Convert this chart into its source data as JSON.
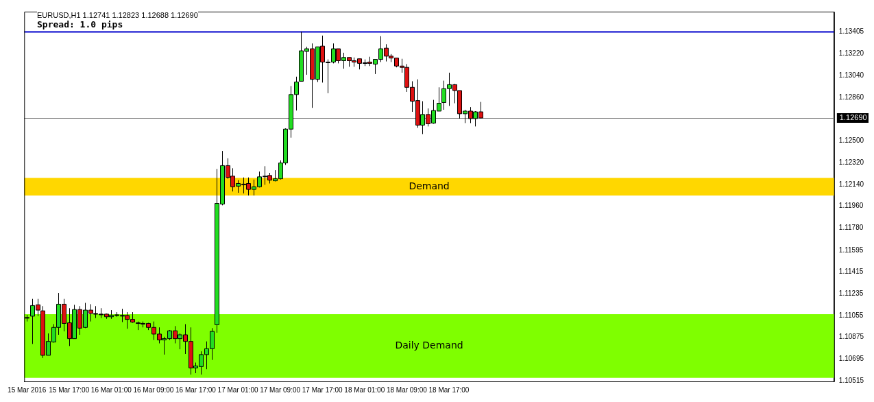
{
  "chart_data": {
    "type": "candlestick",
    "title": "EURUSD,H1  1.12741 1.12823 1.12688 1.12690",
    "subtitle": "Spread: 1.0 pips",
    "x": [
      "2016-03-15T09:00",
      "2016-03-15T10:00",
      "2016-03-15T11:00",
      "2016-03-15T12:00",
      "2016-03-15T13:00",
      "2016-03-15T14:00",
      "2016-03-15T15:00",
      "2016-03-15T16:00",
      "2016-03-15T17:00",
      "2016-03-15T18:00",
      "2016-03-15T19:00",
      "2016-03-15T20:00",
      "2016-03-15T21:00",
      "2016-03-15T22:00",
      "2016-03-15T23:00",
      "2016-03-16T00:00",
      "2016-03-16T01:00",
      "2016-03-16T02:00",
      "2016-03-16T03:00",
      "2016-03-16T04:00",
      "2016-03-16T05:00",
      "2016-03-16T06:00",
      "2016-03-16T07:00",
      "2016-03-16T08:00",
      "2016-03-16T09:00",
      "2016-03-16T10:00",
      "2016-03-16T11:00",
      "2016-03-16T12:00",
      "2016-03-16T13:00",
      "2016-03-16T14:00",
      "2016-03-16T15:00",
      "2016-03-16T16:00",
      "2016-03-16T17:00",
      "2016-03-16T18:00",
      "2016-03-16T19:00",
      "2016-03-16T20:00",
      "2016-03-16T21:00",
      "2016-03-16T22:00",
      "2016-03-16T23:00",
      "2016-03-17T00:00",
      "2016-03-17T01:00",
      "2016-03-17T02:00",
      "2016-03-17T03:00",
      "2016-03-17T04:00",
      "2016-03-17T05:00",
      "2016-03-17T06:00",
      "2016-03-17T07:00",
      "2016-03-17T08:00",
      "2016-03-17T09:00",
      "2016-03-17T10:00",
      "2016-03-17T11:00",
      "2016-03-17T12:00",
      "2016-03-17T13:00",
      "2016-03-17T14:00",
      "2016-03-17T15:00",
      "2016-03-17T16:00",
      "2016-03-17T17:00",
      "2016-03-17T18:00",
      "2016-03-17T19:00",
      "2016-03-17T20:00",
      "2016-03-17T21:00",
      "2016-03-17T22:00",
      "2016-03-17T23:00",
      "2016-03-18T00:00",
      "2016-03-18T01:00",
      "2016-03-18T02:00",
      "2016-03-18T03:00",
      "2016-03-18T04:00",
      "2016-03-18T05:00",
      "2016-03-18T06:00",
      "2016-03-18T07:00",
      "2016-03-18T08:00",
      "2016-03-18T09:00",
      "2016-03-18T10:00",
      "2016-03-18T11:00",
      "2016-03-18T12:00",
      "2016-03-18T13:00",
      "2016-03-18T14:00",
      "2016-03-18T15:00",
      "2016-03-18T16:00",
      "2016-03-18T17:00",
      "2016-03-18T18:00",
      "2016-03-18T19:00",
      "2016-03-18T20:00",
      "2016-03-18T21:00",
      "2016-03-18T22:00",
      "2016-03-18T23:00"
    ],
    "ohlc": [
      [
        1.11039,
        1.11061,
        1.11006,
        1.11039
      ],
      [
        1.1105,
        1.11193,
        1.1082,
        1.11138
      ],
      [
        1.11144,
        1.11193,
        1.1105,
        1.111
      ],
      [
        1.11094,
        1.11133,
        1.10704,
        1.10726
      ],
      [
        1.10726,
        1.10907,
        1.10726,
        1.10841
      ],
      [
        1.10836,
        1.10984,
        1.10831,
        1.10957
      ],
      [
        1.10957,
        1.11242,
        1.10896,
        1.11149
      ],
      [
        1.11149,
        1.11193,
        1.10924,
        1.1099
      ],
      [
        1.10995,
        1.11116,
        1.10803,
        1.10864
      ],
      [
        1.10864,
        1.11144,
        1.10864,
        1.11105
      ],
      [
        1.11105,
        1.11133,
        1.10896,
        1.10951
      ],
      [
        1.10957,
        1.1116,
        1.10951,
        1.111
      ],
      [
        1.111,
        1.11149,
        1.11006,
        1.11072
      ],
      [
        1.11072,
        1.11133,
        1.11034,
        1.11072
      ],
      [
        1.11067,
        1.11116,
        1.11034,
        1.11067
      ],
      [
        1.11067,
        1.11072,
        1.11028,
        1.11045
      ],
      [
        1.11045,
        1.111,
        1.11028,
        1.11056
      ],
      [
        1.11061,
        1.11083,
        1.11045,
        1.11061
      ],
      [
        1.11056,
        1.11111,
        1.11001,
        1.11056
      ],
      [
        1.11056,
        1.11083,
        1.10946,
        1.11023
      ],
      [
        1.11023,
        1.11083,
        1.10995,
        1.11001
      ],
      [
        1.10995,
        1.11006,
        1.10935,
        1.10995
      ],
      [
        1.1099,
        1.11006,
        1.10957,
        1.1099
      ],
      [
        1.1099,
        1.10995,
        1.10935,
        1.10957
      ],
      [
        1.10957,
        1.11006,
        1.10853,
        1.10902
      ],
      [
        1.10902,
        1.10957,
        1.10825,
        1.10853
      ],
      [
        1.10853,
        1.1088,
        1.10732,
        1.10864
      ],
      [
        1.10864,
        1.10935,
        1.10853,
        1.10929
      ],
      [
        1.10929,
        1.10968,
        1.10825,
        1.10864
      ],
      [
        1.10864,
        1.10907,
        1.10776,
        1.10896
      ],
      [
        1.10896,
        1.10984,
        1.10737,
        1.10841
      ],
      [
        1.10841,
        1.10957,
        1.10567,
        1.10622
      ],
      [
        1.10622,
        1.10666,
        1.10578,
        1.10638
      ],
      [
        1.10633,
        1.10759,
        1.10567,
        1.10732
      ],
      [
        1.10732,
        1.10841,
        1.10611,
        1.10781
      ],
      [
        1.10781,
        1.10951,
        1.10688,
        1.10924
      ],
      [
        1.10979,
        1.12269,
        1.10913,
        1.11983
      ],
      [
        1.11978,
        1.12417,
        1.11967,
        1.12296
      ],
      [
        1.12296,
        1.12357,
        1.12187,
        1.12198
      ],
      [
        1.12209,
        1.12274,
        1.12082,
        1.12121
      ],
      [
        1.12126,
        1.12176,
        1.12071,
        1.12148
      ],
      [
        1.12143,
        1.12198,
        1.12066,
        1.12143
      ],
      [
        1.12148,
        1.12198,
        1.12049,
        1.12099
      ],
      [
        1.12099,
        1.12181,
        1.12049,
        1.12121
      ],
      [
        1.12121,
        1.12247,
        1.12115,
        1.12203
      ],
      [
        1.12209,
        1.12291,
        1.12137,
        1.12209
      ],
      [
        1.12214,
        1.12236,
        1.12148,
        1.12176
      ],
      [
        1.1217,
        1.12258,
        1.12165,
        1.12187
      ],
      [
        1.12187,
        1.1234,
        1.12181,
        1.12318
      ],
      [
        1.12318,
        1.12604,
        1.12302,
        1.12598
      ],
      [
        1.12598,
        1.12955,
        1.12527,
        1.12884
      ],
      [
        1.12884,
        1.13032,
        1.12752,
        1.12988
      ],
      [
        1.12994,
        1.13405,
        1.12994,
        1.13246
      ],
      [
        1.13241,
        1.13279,
        1.13048,
        1.13263
      ],
      [
        1.13263,
        1.13307,
        1.12774,
        1.1301
      ],
      [
        1.1301,
        1.13279,
        1.12988,
        1.13279
      ],
      [
        1.13285,
        1.13372,
        1.12983,
        1.13153
      ],
      [
        1.13153,
        1.13175,
        1.12895,
        1.13153
      ],
      [
        1.13153,
        1.13307,
        1.13142,
        1.13263
      ],
      [
        1.13263,
        1.13263,
        1.13142,
        1.13164
      ],
      [
        1.13164,
        1.1323,
        1.13098,
        1.13191
      ],
      [
        1.13191,
        1.13191,
        1.13114,
        1.13164
      ],
      [
        1.13164,
        1.13191,
        1.13114,
        1.13153
      ],
      [
        1.1318,
        1.1318,
        1.13092,
        1.13142
      ],
      [
        1.13147,
        1.13175,
        1.1312,
        1.13147
      ],
      [
        1.13153,
        1.13197,
        1.1312,
        1.13142
      ],
      [
        1.13136,
        1.13175,
        1.13054,
        1.13175
      ],
      [
        1.13175,
        1.13367,
        1.13153,
        1.13263
      ],
      [
        1.13268,
        1.13301,
        1.13158,
        1.13202
      ],
      [
        1.13202,
        1.13219,
        1.13153,
        1.13186
      ],
      [
        1.13186,
        1.13186,
        1.13109,
        1.1312
      ],
      [
        1.1312,
        1.1318,
        1.13065,
        1.13109
      ],
      [
        1.13109,
        1.13136,
        1.12906,
        1.12944
      ],
      [
        1.12944,
        1.12994,
        1.12741,
        1.12829
      ],
      [
        1.12834,
        1.1301,
        1.12609,
        1.12631
      ],
      [
        1.12631,
        1.12829,
        1.12557,
        1.12719
      ],
      [
        1.12719,
        1.12769,
        1.1262,
        1.12642
      ],
      [
        1.12648,
        1.1284,
        1.12642,
        1.12752
      ],
      [
        1.12747,
        1.12944,
        1.12747,
        1.12812
      ],
      [
        1.12818,
        1.12999,
        1.12758,
        1.12933
      ],
      [
        1.12933,
        1.13065,
        1.1279,
        1.12966
      ],
      [
        1.12966,
        1.12972,
        1.12812,
        1.12917
      ],
      [
        1.12917,
        1.12917,
        1.12685,
        1.12725
      ],
      [
        1.12725,
        1.12758,
        1.12648,
        1.12747
      ],
      [
        1.12747,
        1.1278,
        1.12648,
        1.12685
      ],
      [
        1.12685,
        1.12747,
        1.1262,
        1.12741
      ],
      [
        1.12741,
        1.12823,
        1.12688,
        1.1269
      ]
    ],
    "colors": [
      "#000000",
      "#22dd22",
      "#dd1111",
      "#dd1111",
      "#22dd22",
      "#22dd22",
      "#22dd22",
      "#dd1111",
      "#dd1111",
      "#22dd22",
      "#dd1111",
      "#22dd22",
      "#dd1111",
      "#000000",
      "#000000",
      "#dd1111",
      "#22dd22",
      "#000000",
      "#000000",
      "#dd1111",
      "#dd1111",
      "#000000",
      "#000000",
      "#dd1111",
      "#dd1111",
      "#dd1111",
      "#22dd22",
      "#22dd22",
      "#dd1111",
      "#22dd22",
      "#dd1111",
      "#dd1111",
      "#22dd22",
      "#22dd22",
      "#22dd22",
      "#22dd22",
      "#22dd22",
      "#22dd22",
      "#dd1111",
      "#dd1111",
      "#22dd22",
      "#000000",
      "#dd1111",
      "#22dd22",
      "#22dd22",
      "#000000",
      "#dd1111",
      "#22dd22",
      "#22dd22",
      "#22dd22",
      "#22dd22",
      "#22dd22",
      "#22dd22",
      "#22dd22",
      "#dd1111",
      "#22dd22",
      "#dd1111",
      "#000000",
      "#22dd22",
      "#dd1111",
      "#22dd22",
      "#dd1111",
      "#dd1111",
      "#dd1111",
      "#000000",
      "#dd1111",
      "#22dd22",
      "#22dd22",
      "#dd1111",
      "#dd1111",
      "#dd1111",
      "#dd1111",
      "#dd1111",
      "#dd1111",
      "#dd1111",
      "#22dd22",
      "#dd1111",
      "#22dd22",
      "#22dd22",
      "#22dd22",
      "#22dd22",
      "#dd1111",
      "#dd1111",
      "#22dd22",
      "#dd1111",
      "#22dd22",
      "#dd1111"
    ],
    "xlim": [
      "2016-03-15T08:30",
      "2016-03-21T18:00"
    ],
    "xticks": [
      {
        "value": "2016-03-15T09:00",
        "label": "15 Mar 2016"
      },
      {
        "value": "2016-03-15T17:00",
        "label": "15 Mar 17:00"
      },
      {
        "value": "2016-03-16T01:00",
        "label": "16 Mar 01:00"
      },
      {
        "value": "2016-03-16T09:00",
        "label": "16 Mar 09:00"
      },
      {
        "value": "2016-03-16T17:00",
        "label": "16 Mar 17:00"
      },
      {
        "value": "2016-03-17T01:00",
        "label": "17 Mar 01:00"
      },
      {
        "value": "2016-03-17T09:00",
        "label": "17 Mar 09:00"
      },
      {
        "value": "2016-03-17T17:00",
        "label": "17 Mar 17:00"
      },
      {
        "value": "2016-03-18T01:00",
        "label": "18 Mar 01:00"
      },
      {
        "value": "2016-03-18T09:00",
        "label": "18 Mar 09:00"
      },
      {
        "value": "2016-03-18T17:00",
        "label": "18 Mar 17:00"
      }
    ],
    "ylim": [
      1.1051,
      1.1357
    ],
    "yticks": [
      1.13405,
      {
        "value": 1.1322,
        "label": "1.13220"
      },
      {
        "value": 1.1304,
        "label": "1.13040"
      },
      {
        "value": 1.1286,
        "label": "1.12860"
      },
      {
        "value": 1.125,
        "label": "1.12500"
      },
      {
        "value": 1.1232,
        "label": "1.12320"
      },
      {
        "value": 1.1214,
        "label": "1.12140"
      },
      {
        "value": 1.1196,
        "label": "1.11960"
      },
      {
        "value": 1.1178,
        "label": "1.11780"
      },
      1.11595,
      1.11415,
      1.11235,
      1.11055,
      1.10875,
      1.10695,
      1.10515
    ],
    "ref_lines": [
      {
        "axis": "y",
        "value": 1.13405,
        "color": "#0000cc"
      },
      {
        "axis": "y",
        "value": 1.1269,
        "label": "1.12690",
        "color": "#808080"
      }
    ],
    "bands": [
      {
        "axis": "y",
        "from": 1.12048,
        "to": 1.12195,
        "label": "Demand",
        "color": "#ffd700"
      },
      {
        "axis": "y",
        "from": 1.1054,
        "to": 1.11066,
        "label": "Daily Demand",
        "color": "#7fff00"
      }
    ],
    "grid": false,
    "legend": false
  }
}
